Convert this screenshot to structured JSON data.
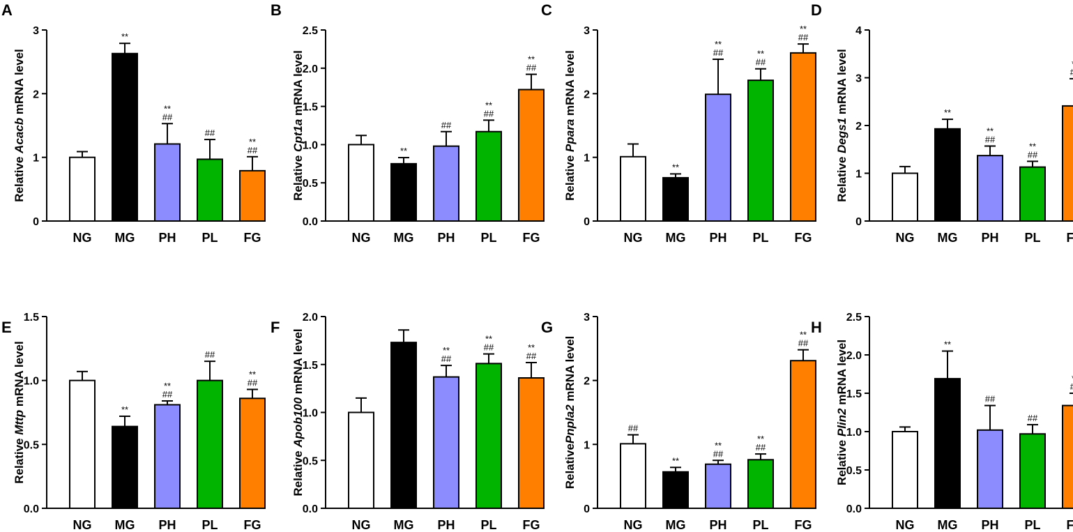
{
  "figure": {
    "colors": {
      "NG": "#ffffff",
      "MG": "#000000",
      "PH": "#8c8cff",
      "PL": "#00b400",
      "FG": "#ff7f00"
    }
  },
  "chart_data": [
    {
      "panel": "A",
      "type": "bar",
      "ylabel_prefix": "Relative ",
      "gene": "Acacb",
      "ylabel_suffix": " mRNA level",
      "categories": [
        "NG",
        "MG",
        "PH",
        "PL",
        "FG"
      ],
      "values": [
        1.0,
        2.63,
        1.21,
        0.97,
        0.79
      ],
      "errors": [
        0.09,
        0.16,
        0.32,
        0.31,
        0.22
      ],
      "annotations": [
        [],
        [
          "**"
        ],
        [
          "**",
          "##"
        ],
        [
          "##"
        ],
        [
          "**",
          "##"
        ]
      ],
      "ylim": [
        0,
        3
      ],
      "yticks": [
        "0",
        "1",
        "2",
        "3"
      ]
    },
    {
      "panel": "B",
      "type": "bar",
      "ylabel_prefix": "Relative ",
      "gene": "Cpt1a",
      "ylabel_suffix": " mRNA level",
      "categories": [
        "NG",
        "MG",
        "PH",
        "PL",
        "FG"
      ],
      "values": [
        1.0,
        0.75,
        0.98,
        1.17,
        1.72
      ],
      "errors": [
        0.12,
        0.08,
        0.19,
        0.15,
        0.2
      ],
      "annotations": [
        [],
        [
          "**"
        ],
        [
          "##"
        ],
        [
          "**",
          "##"
        ],
        [
          "**",
          "##"
        ]
      ],
      "ylim": [
        0,
        2.5
      ],
      "yticks": [
        "0.0",
        "0.5",
        "1.0",
        "1.5",
        "2.0",
        "2.5"
      ]
    },
    {
      "panel": "C",
      "type": "bar",
      "ylabel_prefix": "Relative ",
      "gene": "Ppara",
      "ylabel_suffix": " mRNA level",
      "categories": [
        "NG",
        "MG",
        "PH",
        "PL",
        "FG"
      ],
      "values": [
        1.01,
        0.68,
        1.99,
        2.21,
        2.64
      ],
      "errors": [
        0.2,
        0.06,
        0.55,
        0.18,
        0.14
      ],
      "annotations": [
        [],
        [
          "**"
        ],
        [
          "**",
          "##"
        ],
        [
          "**",
          "##"
        ],
        [
          "**",
          "##"
        ]
      ],
      "ylim": [
        0,
        3
      ],
      "yticks": [
        "0",
        "1",
        "2",
        "3"
      ]
    },
    {
      "panel": "D",
      "type": "bar",
      "ylabel_prefix": "Relative ",
      "gene": "Degs1",
      "ylabel_suffix": " mRNA level",
      "categories": [
        "NG",
        "MG",
        "PH",
        "PL",
        "FG"
      ],
      "values": [
        1.0,
        1.93,
        1.37,
        1.13,
        2.41
      ],
      "errors": [
        0.14,
        0.2,
        0.2,
        0.12,
        0.57
      ],
      "annotations": [
        [],
        [
          "**"
        ],
        [
          "**",
          "##"
        ],
        [
          "**",
          "##"
        ],
        [
          "**",
          "##"
        ]
      ],
      "ylim": [
        0,
        4
      ],
      "yticks": [
        "0",
        "1",
        "2",
        "3",
        "4"
      ]
    },
    {
      "panel": "E",
      "type": "bar",
      "ylabel_prefix": "Relative ",
      "gene": "Mttp",
      "ylabel_suffix": " mRNA level",
      "categories": [
        "NG",
        "MG",
        "PH",
        "PL",
        "FG"
      ],
      "values": [
        1.0,
        0.64,
        0.81,
        1.0,
        0.86
      ],
      "errors": [
        0.07,
        0.08,
        0.03,
        0.15,
        0.07
      ],
      "annotations": [
        [],
        [
          "**"
        ],
        [
          "**",
          "##"
        ],
        [
          "##"
        ],
        [
          "**",
          "##"
        ]
      ],
      "ylim": [
        0,
        1.5
      ],
      "yticks": [
        "0.0",
        "0.5",
        "1.0",
        "1.5"
      ]
    },
    {
      "panel": "F",
      "type": "bar",
      "ylabel_prefix": "Relative ",
      "gene": "Apob100",
      "ylabel_suffix": " mRNA level",
      "categories": [
        "NG",
        "MG",
        "PH",
        "PL",
        "FG"
      ],
      "values": [
        1.0,
        1.73,
        1.37,
        1.51,
        1.36
      ],
      "errors": [
        0.15,
        0.13,
        0.12,
        0.1,
        0.16
      ],
      "annotations": [
        [],
        [],
        [
          "**",
          "##"
        ],
        [
          "**",
          "##"
        ],
        [
          "**",
          "##"
        ]
      ],
      "ylim": [
        0,
        2.0
      ],
      "yticks": [
        "0.0",
        "0.5",
        "1.0",
        "1.5",
        "2.0"
      ]
    },
    {
      "panel": "G",
      "type": "bar",
      "ylabel_prefix": "Relative",
      "gene": "Pnpla2",
      "ylabel_suffix": " mRNA level",
      "categories": [
        "NG",
        "MG",
        "PH",
        "PL",
        "FG"
      ],
      "values": [
        1.01,
        0.57,
        0.69,
        0.76,
        2.31
      ],
      "errors": [
        0.14,
        0.07,
        0.06,
        0.09,
        0.17
      ],
      "annotations": [
        [
          "##"
        ],
        [
          "**"
        ],
        [
          "**",
          "##"
        ],
        [
          "**",
          "##"
        ],
        [
          "**",
          "##"
        ]
      ],
      "ylim": [
        0,
        3
      ],
      "yticks": [
        "0",
        "1",
        "2",
        "3"
      ]
    },
    {
      "panel": "H",
      "type": "bar",
      "ylabel_prefix": "Relative ",
      "gene": "Plin2",
      "ylabel_suffix": " mRNA level",
      "categories": [
        "NG",
        "MG",
        "PH",
        "PL",
        "FG"
      ],
      "values": [
        1.0,
        1.69,
        1.02,
        0.97,
        1.34
      ],
      "errors": [
        0.06,
        0.36,
        0.32,
        0.12,
        0.16
      ],
      "annotations": [
        [],
        [
          "**"
        ],
        [
          "##"
        ],
        [
          "##"
        ],
        [
          "**",
          "##"
        ]
      ],
      "ylim": [
        0,
        2.5
      ],
      "yticks": [
        "0.0",
        "0.5",
        "1.0",
        "1.5",
        "2.0",
        "2.5"
      ]
    }
  ]
}
